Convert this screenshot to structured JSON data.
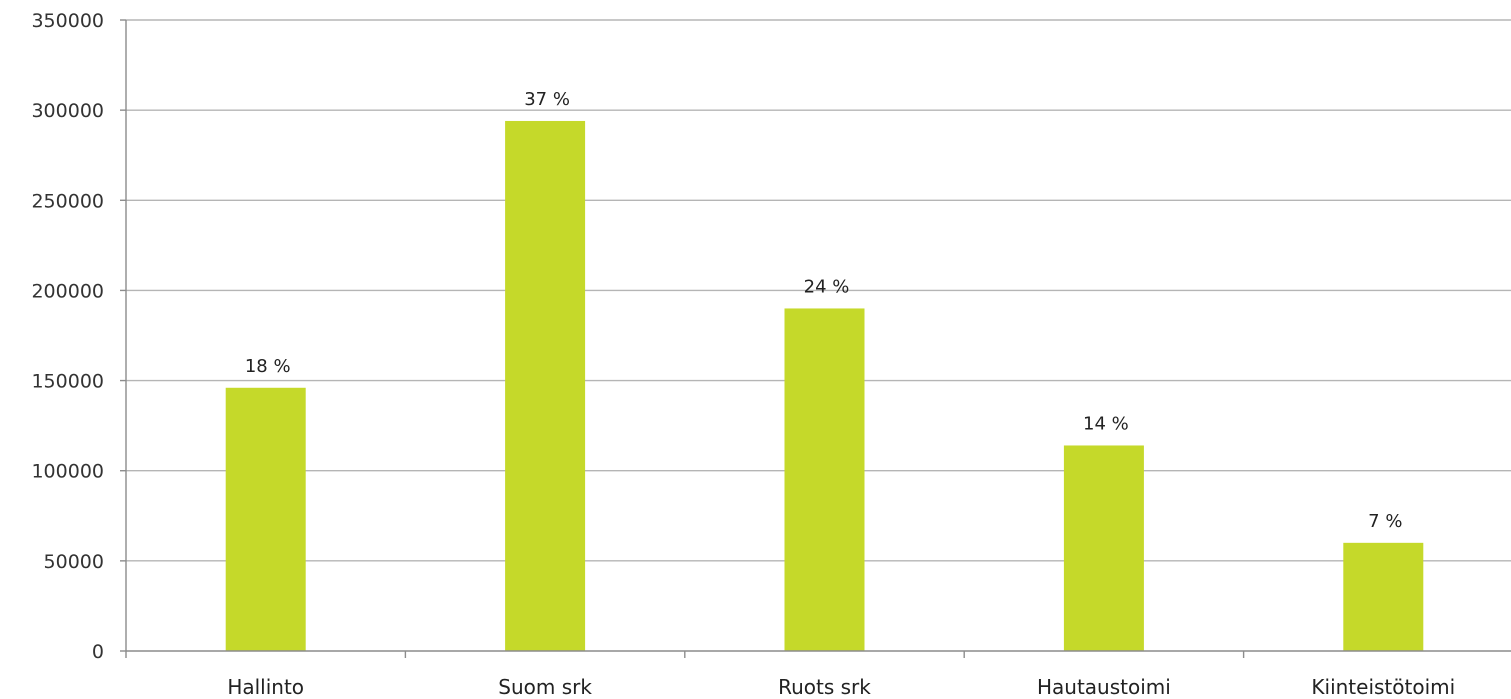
{
  "chart_data": {
    "type": "bar",
    "title": "",
    "xlabel": "",
    "ylabel": "",
    "categories": [
      "Hallinto",
      "Suom srk",
      "Ruots srk",
      "Hautaustoimi",
      "Kiinteistötoimi"
    ],
    "values": [
      146000,
      294000,
      190000,
      114000,
      60000
    ],
    "data_labels": [
      "18 %",
      "37 %",
      "24 %",
      "14 %",
      "7 %"
    ],
    "ylim": [
      0,
      350000
    ],
    "yticks": [
      0,
      50000,
      100000,
      150000,
      200000,
      250000,
      300000,
      350000
    ],
    "ytick_labels": [
      "0",
      "50000",
      "100000",
      "150000",
      "200000",
      "250000",
      "300000",
      "350000"
    ],
    "grid": true,
    "legend": "none",
    "bar_color": "#c5d92a"
  }
}
